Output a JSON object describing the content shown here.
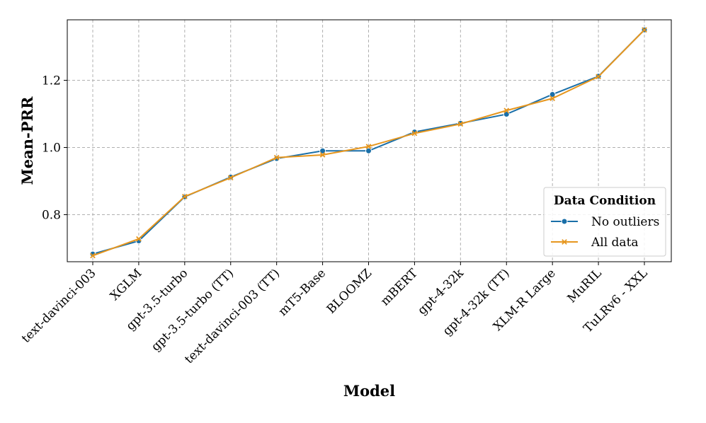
{
  "chart_data": {
    "type": "line",
    "title": "",
    "xlabel": "Model",
    "ylabel": "Mean-PRR",
    "categories": [
      "text-davinci-003",
      "XGLM",
      "gpt-3.5-turbo",
      "gpt-3.5-turbo (TT)",
      "text-davinci-003 (TT)",
      "mT5-Base",
      "BLOOMZ",
      "mBERT",
      "gpt-4-32k",
      "gpt-4-32k (TT)",
      "XLM-R Large",
      "MuRIL",
      "TuLRv6 - XXL"
    ],
    "ylim": [
      0.66,
      1.38
    ],
    "yticks": [
      "0.8",
      "1.0",
      "1.2"
    ],
    "grid": true,
    "legend": {
      "title": "Data Condition",
      "placement": "lower-right"
    },
    "series": [
      {
        "name": "No outliers",
        "color": "#1a6fa8",
        "marker": "circle",
        "values": [
          0.683,
          0.722,
          0.853,
          0.912,
          0.967,
          0.99,
          0.99,
          1.046,
          1.072,
          1.099,
          1.158,
          1.212,
          1.35
        ]
      },
      {
        "name": "All data",
        "color": "#e6961e",
        "marker": "x",
        "values": [
          0.678,
          0.728,
          0.854,
          0.91,
          0.97,
          0.978,
          1.003,
          1.042,
          1.07,
          1.11,
          1.146,
          1.211,
          1.35
        ]
      }
    ]
  }
}
